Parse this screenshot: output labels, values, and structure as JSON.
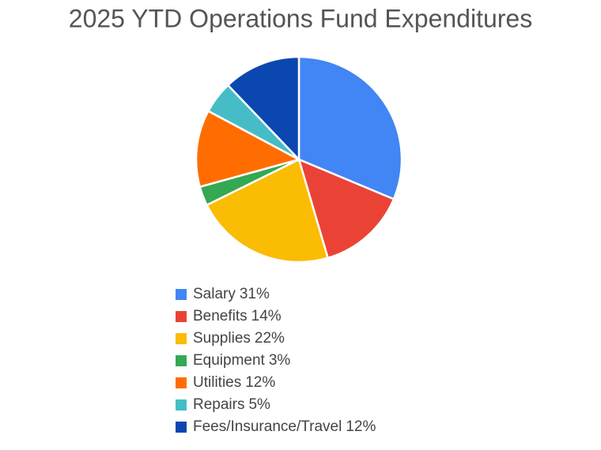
{
  "chart_data": {
    "type": "pie",
    "title": "2025 YTD Operations Fund Expenditures",
    "categories": [
      "Salary",
      "Benefits",
      "Supplies",
      "Equipment",
      "Utilities",
      "Repairs",
      "Fees/Insurance/Travel"
    ],
    "values": [
      31,
      14,
      22,
      3,
      12,
      5,
      12
    ],
    "value_labels": [
      "31%",
      "14%",
      "22%",
      "3%",
      "12%",
      "5%",
      "12%"
    ],
    "colors": [
      "#4285f4",
      "#ea4335",
      "#fbbc04",
      "#34a853",
      "#ff6d01",
      "#46bdc6",
      "#0b47b0"
    ],
    "legend": "bottom"
  }
}
